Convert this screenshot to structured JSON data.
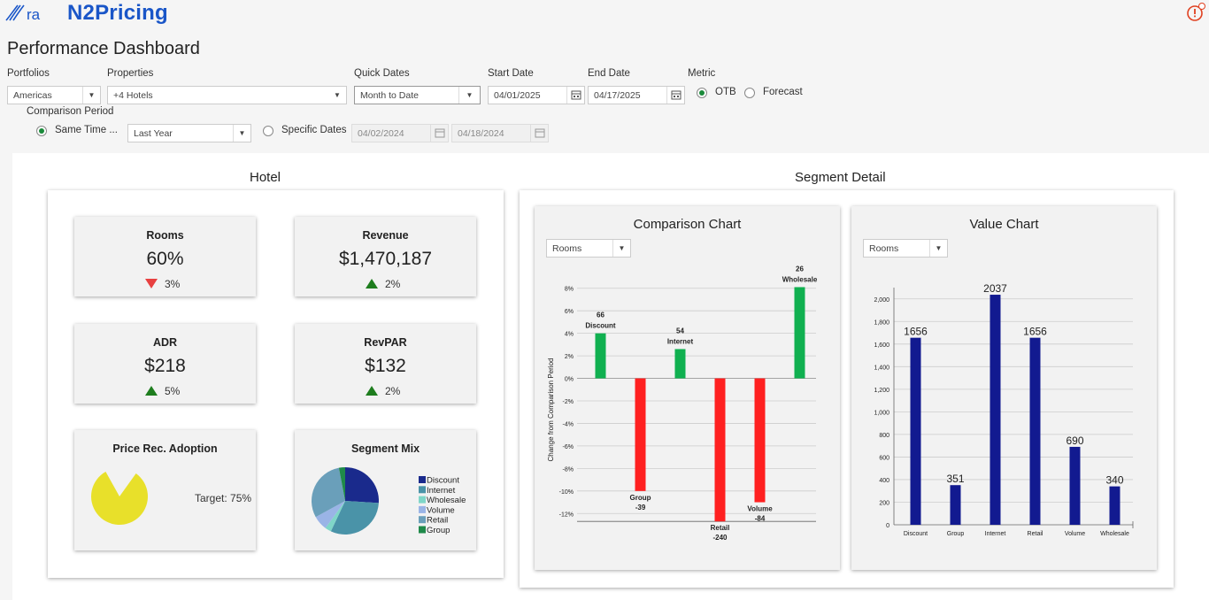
{
  "app": {
    "brand": "N2Pricing",
    "logo_text": "ra"
  },
  "page": {
    "title": "Performance Dashboard"
  },
  "filters": {
    "portfolios": {
      "label": "Portfolios",
      "value": "Americas"
    },
    "properties": {
      "label": "Properties",
      "value": "+4 Hotels"
    },
    "quick_dates": {
      "label": "Quick Dates",
      "value": "Month to Date"
    },
    "start_date": {
      "label": "Start Date",
      "value": "04/01/2025"
    },
    "end_date": {
      "label": "End Date",
      "value": "04/17/2025"
    },
    "metric": {
      "label": "Metric",
      "options": [
        "OTB",
        "Forecast"
      ],
      "selected": "OTB"
    },
    "comparison": {
      "label": "Comparison Period",
      "same_time_label": "Same Time ...",
      "same_time_value": "Last Year",
      "specific_label": "Specific Dates",
      "specific_start": "04/02/2024",
      "specific_end": "04/18/2024",
      "selected": "Same Time"
    }
  },
  "hotel": {
    "title": "Hotel",
    "kpis": [
      {
        "title": "Rooms",
        "value": "60%",
        "delta": "3%",
        "direction": "down"
      },
      {
        "title": "Revenue",
        "value": "$1,470,187",
        "delta": "2%",
        "direction": "up"
      },
      {
        "title": "ADR",
        "value": "$218",
        "delta": "5%",
        "direction": "up"
      },
      {
        "title": "RevPAR",
        "value": "$132",
        "delta": "2%",
        "direction": "up"
      }
    ],
    "adoption": {
      "title": "Price Rec. Adoption",
      "target": "Target: 75%",
      "value_fraction": 0.82,
      "color": "#e8e02a"
    },
    "segment_mix": {
      "title": "Segment Mix",
      "slices": [
        {
          "name": "Discount",
          "share": 0.26,
          "color": "#1a2a8c"
        },
        {
          "name": "Internet",
          "share": 0.31,
          "color": "#4a93a8"
        },
        {
          "name": "Wholesale",
          "share": 0.03,
          "color": "#7fd6c8"
        },
        {
          "name": "Volume",
          "share": 0.07,
          "color": "#9ab4e6"
        },
        {
          "name": "Retail",
          "share": 0.3,
          "color": "#6a9fba"
        },
        {
          "name": "Group",
          "share": 0.03,
          "color": "#1f8a4a"
        }
      ]
    }
  },
  "segment_detail": {
    "title": "Segment Detail",
    "comparison_dropdown": "Rooms",
    "value_dropdown": "Rooms"
  },
  "chart_data": [
    {
      "type": "bar",
      "title": "Comparison Chart",
      "ylabel": "Change from Comparison Period",
      "ylim": [
        -13,
        9
      ],
      "yticks": [
        "8%",
        "6%",
        "4%",
        "2%",
        "0%",
        "-2%",
        "-4%",
        "-6%",
        "-8%",
        "-10%",
        "-12%"
      ],
      "categories": [
        "Discount",
        "Group",
        "Internet",
        "Retail",
        "Volume",
        "Wholesale"
      ],
      "values": [
        4.0,
        -10.0,
        2.6,
        -12.7,
        -11.0,
        8.1
      ],
      "labels": [
        "66",
        "-39",
        "54",
        "-240",
        "-84",
        "26"
      ],
      "positive_color": "#10b050",
      "negative_color": "#ff2020"
    },
    {
      "type": "bar",
      "title": "Value Chart",
      "ylim": [
        0,
        2100
      ],
      "yticks": [
        "0",
        "200",
        "400",
        "600",
        "800",
        "1,000",
        "1,200",
        "1,400",
        "1,600",
        "1,800",
        "2,000"
      ],
      "categories": [
        "Discount",
        "Group",
        "Internet",
        "Retail",
        "Volume",
        "Wholesale"
      ],
      "values": [
        1656,
        351,
        2037,
        1656,
        690,
        340
      ],
      "color": "#121a90"
    }
  ]
}
